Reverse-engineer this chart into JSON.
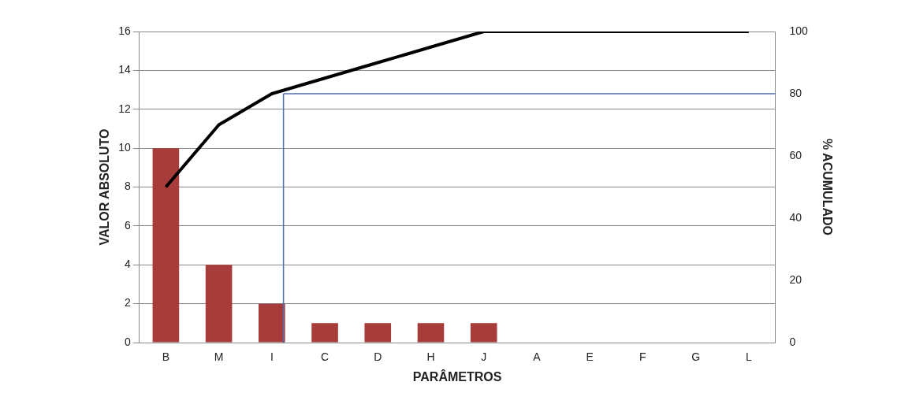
{
  "chart_data": {
    "type": "bar",
    "xlabel": "PARÂMETROS",
    "ylabel": "VALOR ABSOLUTO",
    "y2label": "% ACUMULADO",
    "categories": [
      "B",
      "M",
      "I",
      "C",
      "D",
      "H",
      "J",
      "A",
      "E",
      "F",
      "G",
      "L"
    ],
    "series": [
      {
        "type": "bar",
        "color": "#a83c3a",
        "values": [
          10,
          4,
          2,
          1,
          1,
          1,
          1,
          0,
          0,
          0,
          0,
          0
        ]
      },
      {
        "type": "line",
        "axis": "y2",
        "color": "#000000",
        "values": [
          50,
          70,
          80,
          85,
          90,
          95,
          100,
          100,
          100,
          100,
          100,
          100
        ]
      }
    ],
    "ylim": [
      0,
      16
    ],
    "yticks": [
      0,
      2,
      4,
      6,
      8,
      10,
      12,
      14,
      16
    ],
    "y2lim": [
      0,
      100
    ],
    "y2ticks": [
      0,
      20,
      40,
      60,
      80,
      100
    ],
    "grid": "y",
    "legend": false,
    "marker": "none",
    "ref_lines": [
      {
        "axis": "x",
        "value": "I",
        "color": "#4f6fb0"
      },
      {
        "axis": "y2",
        "value": 80,
        "color": "#4f6fb0"
      }
    ]
  }
}
